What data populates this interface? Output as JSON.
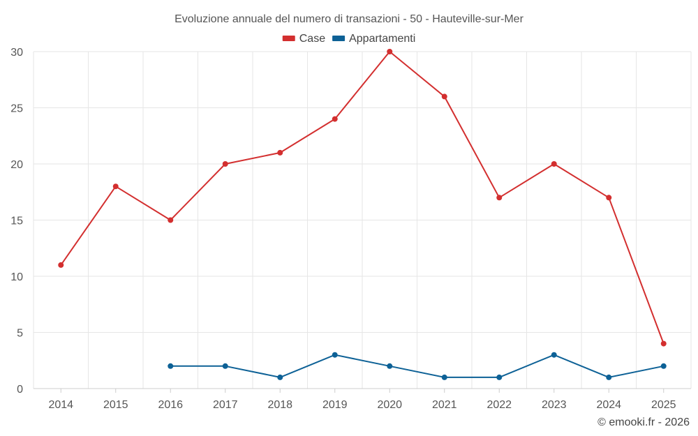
{
  "chart_data": {
    "type": "line",
    "title": "Evoluzione annuale del numero di transazioni - 50 - Hauteville-sur-Mer",
    "xlabel": "",
    "ylabel": "",
    "categories": [
      "2014",
      "2015",
      "2016",
      "2017",
      "2018",
      "2019",
      "2020",
      "2021",
      "2022",
      "2023",
      "2024",
      "2025"
    ],
    "ylim": [
      0,
      30
    ],
    "yticks": [
      0,
      5,
      10,
      15,
      20,
      25,
      30
    ],
    "grid": true,
    "legend_position": "top-center",
    "series": [
      {
        "name": "Case",
        "color": "#d32f2f",
        "values": [
          11,
          18,
          15,
          20,
          21,
          24,
          30,
          26,
          17,
          20,
          17,
          4
        ]
      },
      {
        "name": "Appartamenti",
        "color": "#0d6196",
        "values": [
          null,
          null,
          2,
          2,
          1,
          3,
          2,
          1,
          1,
          3,
          1,
          2
        ]
      }
    ]
  },
  "credit": "© emooki.fr - 2026"
}
